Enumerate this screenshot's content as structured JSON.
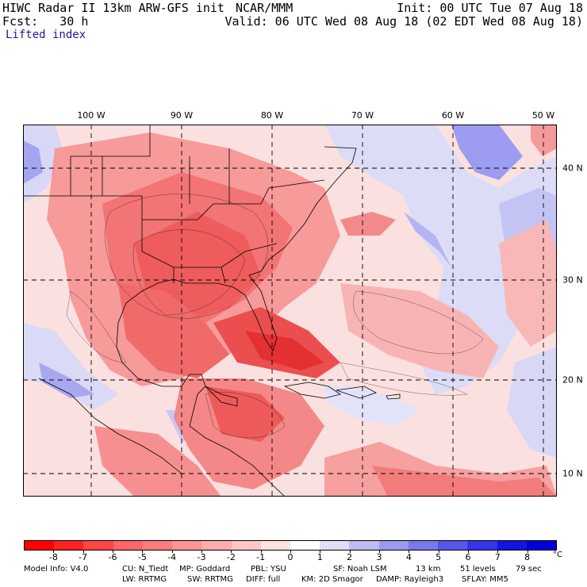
{
  "header": {
    "title": "HIWC Radar II 13km ARW-GFS init",
    "center": "NCAR/MMM",
    "init": "Init: 00 UTC Tue 07 Aug 18",
    "fcst": "Fcst:   30 h",
    "valid": "Valid: 06 UTC Wed 08 Aug 18 (02 EDT Wed 08 Aug 18)",
    "field": "Lifted index"
  },
  "map": {
    "lon_labels": [
      "100 W",
      "90 W",
      "80 W",
      "70 W",
      "60 W",
      "50 W"
    ],
    "lat_labels": [
      "40 N",
      "30 N",
      "20 N",
      "10 N"
    ],
    "colors": {
      "strong_negative": "#e01818",
      "negative": "#f47878",
      "weak_negative": "#fbc6c6",
      "neutral": "#ffffff",
      "weak_positive": "#d2d2f6",
      "positive": "#8a8af0"
    }
  },
  "colorbar": {
    "labels": [
      "-8",
      "-7",
      "-6",
      "-5",
      "-4",
      "-3",
      "-2",
      "-1",
      "0",
      "1",
      "2",
      "3",
      "4",
      "5",
      "6",
      "7",
      "8"
    ],
    "unit": "°C",
    "colors": [
      "#ff0000",
      "#ff2222",
      "#ff4444",
      "#ff6666",
      "#ff7c7c",
      "#ff9494",
      "#ffacac",
      "#ffc6c6",
      "#ffe2e2",
      "#ffffff",
      "#dedef8",
      "#bcbcf2",
      "#9a9aee",
      "#7878ec",
      "#5656ea",
      "#3434e8",
      "#1414e2",
      "#0000d8"
    ]
  },
  "model_info": {
    "line1": [
      "Model Info: V4.0",
      "CU: N_Tiedt",
      "MP: Goddard",
      "PBL: YSU",
      "SF: Noah LSM",
      "13 km",
      "51 levels",
      "79 sec"
    ],
    "line2": [
      "LW: RRTMG",
      "SW: RRTMG",
      "DIFF: full",
      "KM: 2D Smagor",
      "DAMP: Rayleigh3",
      "SFLAY: MM5"
    ]
  }
}
